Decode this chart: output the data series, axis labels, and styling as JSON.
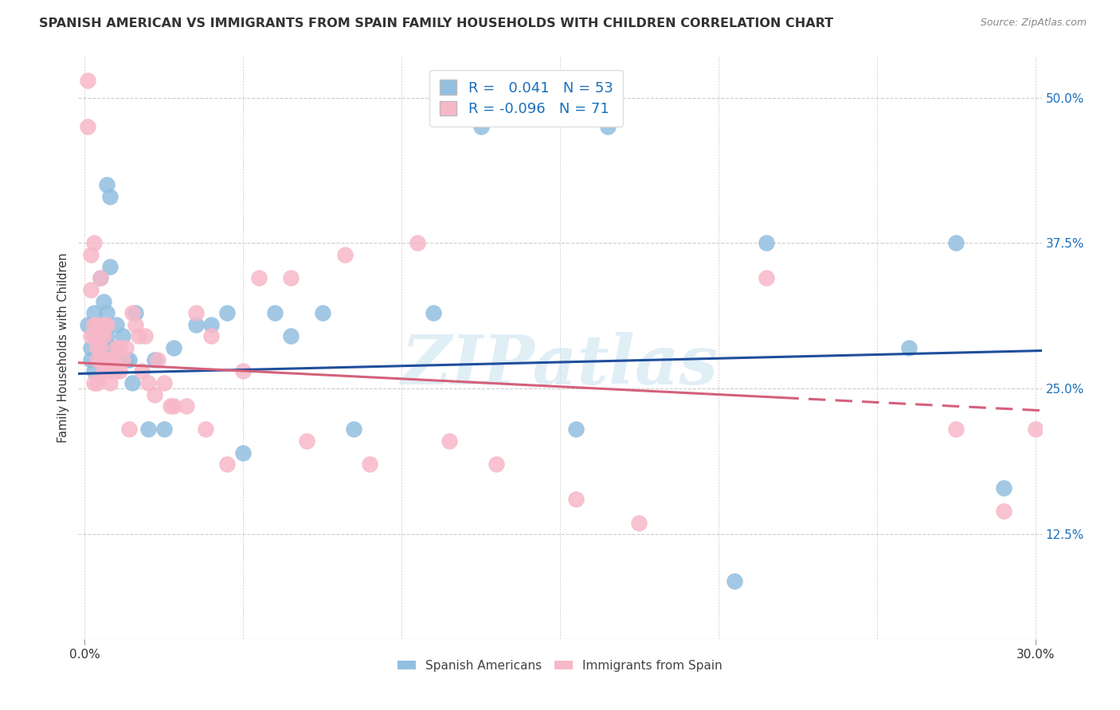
{
  "title": "SPANISH AMERICAN VS IMMIGRANTS FROM SPAIN FAMILY HOUSEHOLDS WITH CHILDREN CORRELATION CHART",
  "source": "Source: ZipAtlas.com",
  "ylabel": "Family Households with Children",
  "yticks": [
    "12.5%",
    "25.0%",
    "37.5%",
    "50.0%"
  ],
  "ytick_vals": [
    0.125,
    0.25,
    0.375,
    0.5
  ],
  "ymin": 0.035,
  "ymax": 0.535,
  "xmin": -0.002,
  "xmax": 0.302,
  "blue_R": 0.041,
  "blue_N": 53,
  "pink_R": -0.096,
  "pink_N": 71,
  "blue_intercept": 0.263,
  "blue_slope": 0.065,
  "pink_intercept": 0.272,
  "pink_slope": -0.135,
  "blue_scatter_x": [
    0.001,
    0.002,
    0.002,
    0.003,
    0.003,
    0.003,
    0.004,
    0.004,
    0.005,
    0.005,
    0.005,
    0.006,
    0.006,
    0.006,
    0.007,
    0.007,
    0.007,
    0.008,
    0.008,
    0.009,
    0.01,
    0.011,
    0.012,
    0.013,
    0.014,
    0.015,
    0.016,
    0.02,
    0.022,
    0.025,
    0.028,
    0.035,
    0.04,
    0.045,
    0.05,
    0.06,
    0.065,
    0.075,
    0.085,
    0.11,
    0.125,
    0.155,
    0.165,
    0.205,
    0.215,
    0.26,
    0.275,
    0.29
  ],
  "blue_scatter_y": [
    0.305,
    0.285,
    0.275,
    0.315,
    0.295,
    0.265,
    0.305,
    0.275,
    0.285,
    0.305,
    0.345,
    0.285,
    0.295,
    0.325,
    0.295,
    0.315,
    0.425,
    0.355,
    0.415,
    0.285,
    0.305,
    0.275,
    0.295,
    0.275,
    0.275,
    0.255,
    0.315,
    0.215,
    0.275,
    0.215,
    0.285,
    0.305,
    0.305,
    0.315,
    0.195,
    0.315,
    0.295,
    0.315,
    0.215,
    0.315,
    0.475,
    0.215,
    0.475,
    0.085,
    0.375,
    0.285,
    0.375,
    0.165
  ],
  "pink_scatter_x": [
    0.001,
    0.001,
    0.002,
    0.002,
    0.002,
    0.003,
    0.003,
    0.003,
    0.003,
    0.004,
    0.004,
    0.004,
    0.004,
    0.005,
    0.005,
    0.005,
    0.005,
    0.006,
    0.006,
    0.006,
    0.007,
    0.007,
    0.007,
    0.008,
    0.008,
    0.009,
    0.009,
    0.01,
    0.01,
    0.011,
    0.011,
    0.012,
    0.013,
    0.014,
    0.015,
    0.016,
    0.017,
    0.018,
    0.019,
    0.02,
    0.022,
    0.023,
    0.025,
    0.027,
    0.028,
    0.032,
    0.035,
    0.038,
    0.04,
    0.045,
    0.05,
    0.055,
    0.065,
    0.07,
    0.082,
    0.09,
    0.105,
    0.115,
    0.13,
    0.155,
    0.175,
    0.215,
    0.275,
    0.29,
    0.3
  ],
  "pink_scatter_y": [
    0.515,
    0.475,
    0.335,
    0.365,
    0.295,
    0.375,
    0.305,
    0.295,
    0.255,
    0.285,
    0.275,
    0.305,
    0.255,
    0.295,
    0.275,
    0.345,
    0.285,
    0.305,
    0.265,
    0.295,
    0.275,
    0.265,
    0.305,
    0.275,
    0.255,
    0.275,
    0.265,
    0.285,
    0.265,
    0.265,
    0.285,
    0.275,
    0.285,
    0.215,
    0.315,
    0.305,
    0.295,
    0.265,
    0.295,
    0.255,
    0.245,
    0.275,
    0.255,
    0.235,
    0.235,
    0.235,
    0.315,
    0.215,
    0.295,
    0.185,
    0.265,
    0.345,
    0.345,
    0.205,
    0.365,
    0.185,
    0.375,
    0.205,
    0.185,
    0.155,
    0.135,
    0.345,
    0.215,
    0.145,
    0.215
  ],
  "blue_color": "#92bfe0",
  "pink_color": "#f7b8c8",
  "blue_line_color": "#1f4e9c",
  "pink_line_color": "#d4607a",
  "watermark": "ZIPatlas",
  "title_fontsize": 11.5
}
